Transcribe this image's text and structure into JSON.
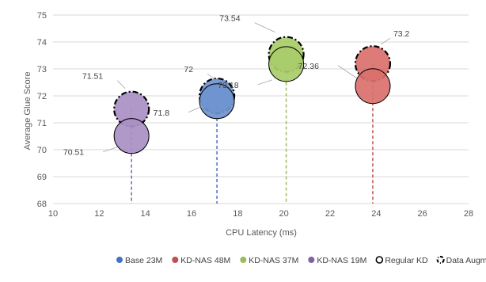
{
  "chart_data": {
    "type": "scatter",
    "xlabel": "CPU Latency (ms)",
    "ylabel": "Average Glue Score",
    "xlim": [
      10,
      28
    ],
    "ylim": [
      68,
      75
    ],
    "x_ticks": [
      10,
      12,
      14,
      16,
      18,
      20,
      22,
      24,
      26,
      28
    ],
    "y_ticks": [
      68,
      69,
      70,
      71,
      72,
      73,
      74,
      75
    ],
    "grid": "horizontal",
    "legend_position": "bottom",
    "series": [
      {
        "name": "Base 23M",
        "color": "#4472C4",
        "fill": "#6f94cf",
        "x": 17.1,
        "regular_kd": 71.8,
        "data_augmentation": 72
      },
      {
        "name": "KD-NAS 48M",
        "color": "#C0504D",
        "fill": "#d9706c",
        "x": 23.85,
        "regular_kd": 72.36,
        "data_augmentation": 73.2
      },
      {
        "name": "KD-NAS 37M",
        "color": "#9BBB59",
        "fill": "#a9cc6a",
        "x": 20.1,
        "regular_kd": 73.18,
        "data_augmentation": 73.54
      },
      {
        "name": "KD-NAS 19M",
        "color": "#8064A2",
        "fill": "#a98fc4",
        "x": 13.4,
        "regular_kd": 70.51,
        "data_augmentation": 71.51
      }
    ],
    "legend": [
      {
        "label": "Base 23M",
        "kind": "series",
        "color": "#4472C4"
      },
      {
        "label": "KD-NAS 48M",
        "kind": "series",
        "color": "#C0504D"
      },
      {
        "label": "KD-NAS 37M",
        "kind": "series",
        "color": "#9BBB59"
      },
      {
        "label": "KD-NAS 19M",
        "kind": "series",
        "color": "#8064A2"
      },
      {
        "label": "Regular KD",
        "kind": "solid-outline",
        "color": "#000000"
      },
      {
        "label": "Data Augmentation",
        "kind": "dashdot-outline",
        "color": "#000000"
      }
    ]
  }
}
